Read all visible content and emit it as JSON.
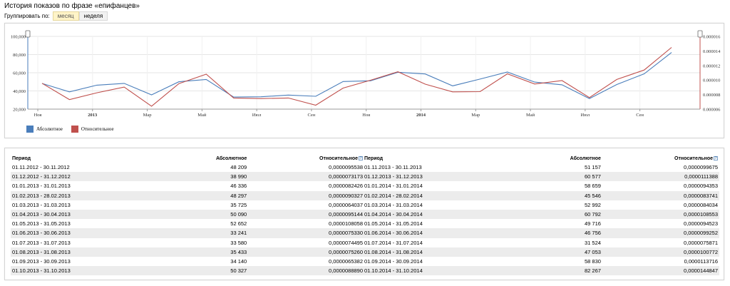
{
  "header": {
    "title": "История показов по фразе «епифанцев»",
    "group_label": "Группировать по:",
    "group_month": "месяц",
    "group_week": "неделя"
  },
  "chart_data": {
    "type": "line",
    "x": [
      "01.11.2012",
      "01.12.2012",
      "01.01.2013",
      "01.02.2013",
      "01.03.2013",
      "01.04.2013",
      "01.05.2013",
      "01.06.2013",
      "01.07.2013",
      "01.08.2013",
      "01.09.2013",
      "01.10.2013",
      "01.11.2013",
      "01.12.2013",
      "01.01.2014",
      "01.02.2014",
      "01.03.2014",
      "01.04.2014",
      "01.05.2014",
      "01.06.2014",
      "01.07.2014",
      "01.08.2014",
      "01.09.2014",
      "01.10.2014"
    ],
    "x_ticks": [
      "Ноя",
      "2013",
      "Мар",
      "Май",
      "Июл",
      "Сен",
      "Ноя",
      "2014",
      "Мар",
      "Май",
      "Июл",
      "Сен"
    ],
    "y_left_ticks": [
      "100,000",
      "80,000",
      "60,000",
      "40,000",
      "20,000"
    ],
    "y_right_ticks": [
      "0.000016",
      "0.000014",
      "0.000012",
      "0.000010",
      "0.000008",
      "0.000006"
    ],
    "ylim_left": [
      20000,
      100000
    ],
    "ylim_right": [
      6e-06,
      1.6e-05
    ],
    "series": [
      {
        "name": "Абсолютное",
        "color": "#4a7ebb",
        "axis": "left",
        "values": [
          48209,
          38990,
          46336,
          48297,
          35725,
          50090,
          52652,
          33241,
          33580,
          35433,
          34140,
          50327,
          51157,
          60577,
          58659,
          45546,
          52992,
          60792,
          49716,
          46756,
          31524,
          47053,
          58830,
          82267
        ]
      },
      {
        "name": "Относительное",
        "color": "#c0504d",
        "axis": "right",
        "values": [
          9.5538e-06,
          7.3173e-06,
          8.2426e-06,
          9.0327e-06,
          6.4037e-06,
          9.5144e-06,
          1.08058e-05,
          7.533e-06,
          7.4495e-06,
          7.526e-06,
          6.5382e-06,
          8.889e-06,
          9.9675e-06,
          1.11388e-05,
          9.4353e-06,
          8.3741e-06,
          8.4034e-06,
          1.08553e-05,
          9.4523e-06,
          9.9252e-06,
          7.5871e-06,
          1.00772e-05,
          1.13716e-05,
          1.44847e-05
        ]
      }
    ]
  },
  "table": {
    "col_period": "Период",
    "col_abs": "Абсолютное",
    "col_rel": "Относительное",
    "help_glyph": "?",
    "left": [
      [
        "01.11.2012 - 30.11.2012",
        "48 209",
        "0,0000095538"
      ],
      [
        "01.12.2012 - 31.12.2012",
        "38 990",
        "0,0000073173"
      ],
      [
        "01.01.2013 - 31.01.2013",
        "46 336",
        "0,0000082426"
      ],
      [
        "01.02.2013 - 28.02.2013",
        "48 297",
        "0,0000090327"
      ],
      [
        "01.03.2013 - 31.03.2013",
        "35 725",
        "0,0000064037"
      ],
      [
        "01.04.2013 - 30.04.2013",
        "50 090",
        "0,0000095144"
      ],
      [
        "01.05.2013 - 31.05.2013",
        "52 652",
        "0,0000108058"
      ],
      [
        "01.06.2013 - 30.06.2013",
        "33 241",
        "0,0000075330"
      ],
      [
        "01.07.2013 - 31.07.2013",
        "33 580",
        "0,0000074495"
      ],
      [
        "01.08.2013 - 31.08.2013",
        "35 433",
        "0,0000075260"
      ],
      [
        "01.09.2013 - 30.09.2013",
        "34 140",
        "0,0000065382"
      ],
      [
        "01.10.2013 - 31.10.2013",
        "50 327",
        "0,0000088890"
      ]
    ],
    "right": [
      [
        "01.11.2013 - 30.11.2013",
        "51 157",
        "0,0000099675"
      ],
      [
        "01.12.2013 - 31.12.2013",
        "60 577",
        "0,0000111388"
      ],
      [
        "01.01.2014 - 31.01.2014",
        "58 659",
        "0,0000094353"
      ],
      [
        "01.02.2014 - 28.02.2014",
        "45 546",
        "0,0000083741"
      ],
      [
        "01.03.2014 - 31.03.2014",
        "52 992",
        "0,0000084034"
      ],
      [
        "01.04.2014 - 30.04.2014",
        "60 792",
        "0,0000108553"
      ],
      [
        "01.05.2014 - 31.05.2014",
        "49 716",
        "0,0000094523"
      ],
      [
        "01.06.2014 - 30.06.2014",
        "46 756",
        "0,0000099252"
      ],
      [
        "01.07.2014 - 31.07.2014",
        "31 524",
        "0,0000075871"
      ],
      [
        "01.08.2014 - 31.08.2014",
        "47 053",
        "0,0000100772"
      ],
      [
        "01.09.2014 - 30.09.2014",
        "58 830",
        "0,0000113716"
      ],
      [
        "01.10.2014 - 31.10.2014",
        "82 267",
        "0,0000144847"
      ]
    ]
  }
}
